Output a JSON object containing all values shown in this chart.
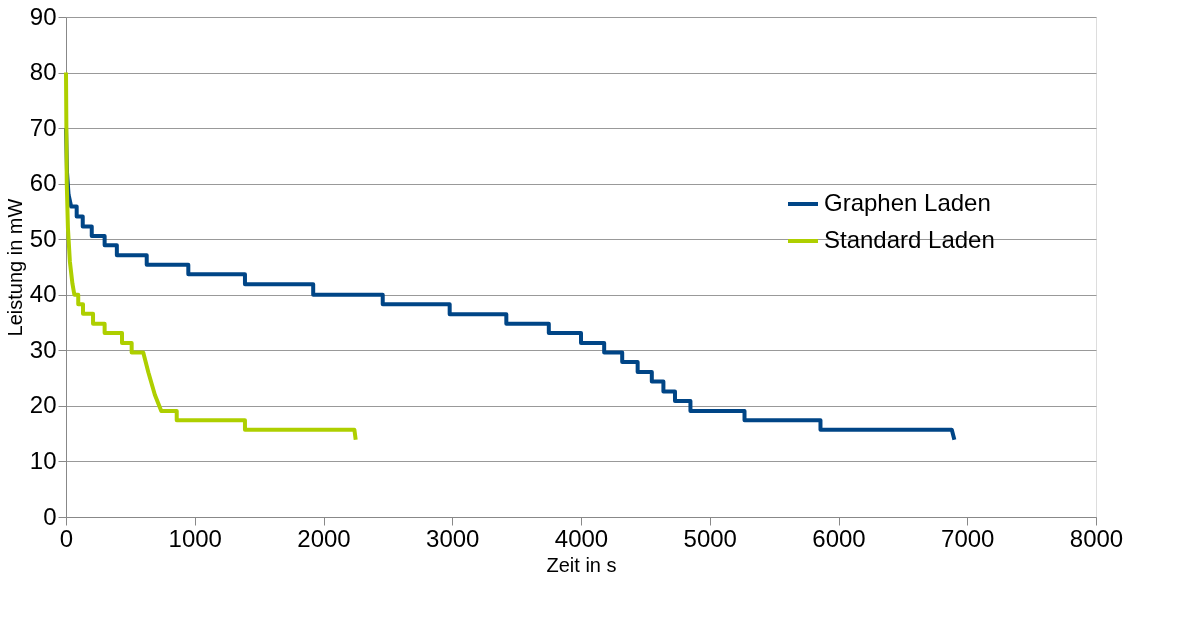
{
  "chart_data": {
    "type": "line",
    "xlabel": "Zeit in s",
    "ylabel": "Leistung in mW",
    "xlim": [
      0,
      8000
    ],
    "xticks": [
      0,
      1000,
      2000,
      3000,
      4000,
      5000,
      6000,
      7000,
      8000
    ],
    "ylim": [
      0,
      90
    ],
    "yticks": [
      0,
      10,
      20,
      30,
      40,
      50,
      60,
      70,
      80,
      90
    ],
    "grid": "y",
    "legend": "right",
    "marker": "none",
    "line_style": "solid",
    "series": [
      {
        "name": "Graphen Laden",
        "color": "#004586",
        "x": [
          0,
          8,
          20,
          40,
          83,
          83,
          130,
          130,
          200,
          200,
          300,
          300,
          395,
          395,
          627,
          627,
          950,
          950,
          1390,
          1390,
          1920,
          1920,
          2460,
          2460,
          2980,
          2980,
          3420,
          3420,
          3750,
          3750,
          4000,
          4000,
          4180,
          4180,
          4320,
          4320,
          4440,
          4440,
          4550,
          4550,
          4640,
          4640,
          4730,
          4730,
          4850,
          4850,
          5270,
          5270,
          5860,
          5860,
          6880,
          6900
        ],
        "values": [
          70,
          62,
          58,
          55.9,
          55.9,
          54.1,
          54.1,
          52.3,
          52.3,
          50.6,
          50.6,
          48.9,
          48.9,
          47.1,
          47.1,
          45.4,
          45.4,
          43.7,
          43.7,
          41.9,
          41.9,
          40.0,
          40.0,
          38.3,
          38.3,
          36.5,
          36.5,
          34.8,
          34.8,
          33.1,
          33.1,
          31.3,
          31.3,
          29.6,
          29.6,
          27.9,
          27.9,
          26.1,
          26.1,
          24.4,
          24.4,
          22.6,
          22.6,
          20.9,
          20.9,
          19.1,
          19.1,
          17.4,
          17.4,
          15.7,
          15.7,
          13.9
        ]
      },
      {
        "name": "Standard Laden",
        "color": "#aecf00",
        "x": [
          0,
          3,
          6,
          15,
          30,
          50,
          65,
          95,
          95,
          132,
          132,
          210,
          210,
          300,
          300,
          435,
          435,
          510,
          510,
          600,
          640,
          690,
          740,
          860,
          860,
          1390,
          1390,
          2240,
          2250
        ],
        "values": [
          80,
          70,
          60,
          52,
          46,
          42,
          40.0,
          40.0,
          38.3,
          38.3,
          36.6,
          36.6,
          34.8,
          34.8,
          33.1,
          33.1,
          31.3,
          31.3,
          29.6,
          29.6,
          26,
          22,
          19.1,
          19.1,
          17.4,
          17.4,
          15.7,
          15.7,
          13.9
        ]
      }
    ]
  }
}
